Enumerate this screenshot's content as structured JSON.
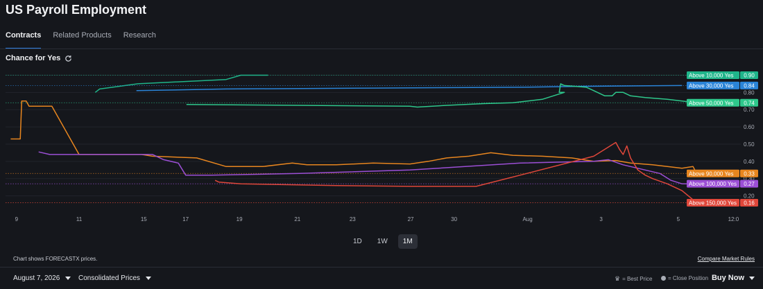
{
  "header": {
    "title": "US Payroll Employment"
  },
  "tabs": [
    {
      "label": "Contracts",
      "active": true
    },
    {
      "label": "Related Products",
      "active": false
    },
    {
      "label": "Research",
      "active": false
    }
  ],
  "section": {
    "title": "Chance for Yes",
    "icon": "refresh-icon"
  },
  "range": {
    "buttons": [
      "1D",
      "1W",
      "1M"
    ],
    "selected": "1M"
  },
  "footer": {
    "note": "Chart shows FORECASTX prices.",
    "compare_link": "Compare Market Rules"
  },
  "bottom_bar": {
    "date": "August 7, 2026",
    "prices": "Consolidated Prices",
    "best_price_label": "= Best Price",
    "close_position_label": "= Close Position",
    "buy_now": "Buy Now"
  },
  "chart_data": {
    "type": "line",
    "ylim": [
      0.13,
      0.93
    ],
    "yticks": [
      "0.90",
      "0.80",
      "0.70",
      "0.60",
      "0.50",
      "0.40",
      "0.30",
      "0.20"
    ],
    "xticks": [
      "9",
      "11",
      "15",
      "17",
      "19",
      "21",
      "23",
      "27",
      "30",
      "Aug",
      "3",
      "5",
      "12:0"
    ],
    "grid": true,
    "series": [
      {
        "name": "Above 10,000 Yes",
        "color": "#1fb58a",
        "last": "0.90",
        "points": [
          [
            0.122,
            0.8
          ],
          [
            0.128,
            0.82
          ],
          [
            0.18,
            0.85
          ],
          [
            0.3,
            0.875
          ],
          [
            0.32,
            0.9
          ],
          [
            0.357,
            0.9
          ]
        ]
      },
      {
        "name": "Above 30,000 Yes",
        "color": "#2a84d8",
        "last": "0.84",
        "points": [
          [
            0.178,
            0.81
          ],
          [
            0.3,
            0.82
          ],
          [
            0.5,
            0.825
          ],
          [
            0.7,
            0.83
          ],
          [
            0.78,
            0.835
          ],
          [
            0.92,
            0.84
          ]
        ]
      },
      {
        "name": "Above 50,000 Yes",
        "color": "#2ec88c",
        "last": "0.74",
        "points": [
          [
            0.246,
            0.73
          ],
          [
            0.4,
            0.725
          ],
          [
            0.55,
            0.72
          ],
          [
            0.56,
            0.715
          ],
          [
            0.6,
            0.725
          ],
          [
            0.65,
            0.735
          ],
          [
            0.69,
            0.74
          ],
          [
            0.73,
            0.76
          ],
          [
            0.76,
            0.8
          ],
          [
            0.753,
            0.8
          ],
          [
            0.755,
            0.85
          ],
          [
            0.76,
            0.84
          ],
          [
            0.79,
            0.83
          ],
          [
            0.8,
            0.81
          ],
          [
            0.81,
            0.79
          ],
          [
            0.815,
            0.78
          ],
          [
            0.825,
            0.78
          ],
          [
            0.83,
            0.8
          ],
          [
            0.84,
            0.8
          ],
          [
            0.85,
            0.78
          ],
          [
            0.87,
            0.77
          ],
          [
            0.9,
            0.76
          ],
          [
            0.93,
            0.745
          ],
          [
            0.95,
            0.74
          ]
        ]
      },
      {
        "name": "Above 90,000 Yes",
        "color": "#e8861f",
        "last": "0.33",
        "points": [
          [
            0.007,
            0.53
          ],
          [
            0.02,
            0.53
          ],
          [
            0.022,
            0.75
          ],
          [
            0.028,
            0.75
          ],
          [
            0.032,
            0.72
          ],
          [
            0.063,
            0.72
          ],
          [
            0.1,
            0.44
          ],
          [
            0.185,
            0.44
          ],
          [
            0.2,
            0.43
          ],
          [
            0.26,
            0.42
          ],
          [
            0.3,
            0.37
          ],
          [
            0.35,
            0.37
          ],
          [
            0.39,
            0.39
          ],
          [
            0.41,
            0.38
          ],
          [
            0.45,
            0.38
          ],
          [
            0.5,
            0.39
          ],
          [
            0.55,
            0.385
          ],
          [
            0.575,
            0.4
          ],
          [
            0.6,
            0.42
          ],
          [
            0.63,
            0.43
          ],
          [
            0.66,
            0.45
          ],
          [
            0.68,
            0.44
          ],
          [
            0.69,
            0.435
          ],
          [
            0.73,
            0.43
          ],
          [
            0.77,
            0.42
          ],
          [
            0.8,
            0.4
          ],
          [
            0.83,
            0.405
          ],
          [
            0.85,
            0.39
          ],
          [
            0.88,
            0.38
          ],
          [
            0.9,
            0.37
          ],
          [
            0.92,
            0.36
          ],
          [
            0.935,
            0.37
          ],
          [
            0.94,
            0.33
          ]
        ]
      },
      {
        "name": "Above 100,000 Yes",
        "color": "#9c4fd6",
        "last": "0.27",
        "points": [
          [
            0.045,
            0.455
          ],
          [
            0.06,
            0.44
          ],
          [
            0.2,
            0.44
          ],
          [
            0.215,
            0.41
          ],
          [
            0.235,
            0.39
          ],
          [
            0.245,
            0.32
          ],
          [
            0.28,
            0.32
          ],
          [
            0.4,
            0.33
          ],
          [
            0.55,
            0.35
          ],
          [
            0.7,
            0.39
          ],
          [
            0.8,
            0.4
          ],
          [
            0.82,
            0.41
          ],
          [
            0.84,
            0.38
          ],
          [
            0.86,
            0.36
          ],
          [
            0.87,
            0.35
          ],
          [
            0.89,
            0.33
          ],
          [
            0.905,
            0.29
          ],
          [
            0.92,
            0.27
          ],
          [
            0.94,
            0.27
          ]
        ]
      },
      {
        "name": "Above 150,000 Yes",
        "color": "#e0473a",
        "last": "0.16",
        "points": [
          [
            0.285,
            0.29
          ],
          [
            0.29,
            0.28
          ],
          [
            0.32,
            0.27
          ],
          [
            0.45,
            0.26
          ],
          [
            0.55,
            0.255
          ],
          [
            0.64,
            0.255
          ],
          [
            0.7,
            0.32
          ],
          [
            0.8,
            0.43
          ],
          [
            0.83,
            0.51
          ],
          [
            0.835,
            0.47
          ],
          [
            0.84,
            0.44
          ],
          [
            0.845,
            0.49
          ],
          [
            0.85,
            0.42
          ],
          [
            0.86,
            0.35
          ],
          [
            0.87,
            0.32
          ],
          [
            0.88,
            0.3
          ],
          [
            0.9,
            0.27
          ],
          [
            0.92,
            0.23
          ],
          [
            0.94,
            0.16
          ]
        ]
      }
    ],
    "reference_lines": [
      0.9,
      0.84,
      0.74,
      0.33,
      0.27,
      0.16
    ]
  }
}
